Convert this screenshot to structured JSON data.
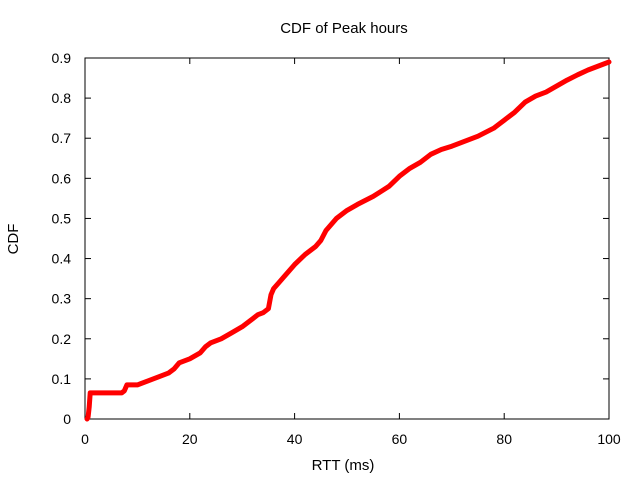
{
  "chart_data": {
    "type": "line",
    "title": "CDF of Peak hours",
    "xlabel": "RTT (ms)",
    "ylabel": "CDF",
    "xlim": [
      0,
      100
    ],
    "ylim": [
      0,
      0.9
    ],
    "xticks": [
      0,
      20,
      40,
      60,
      80,
      100
    ],
    "yticks": [
      0,
      0.1,
      0.2,
      0.3,
      0.4,
      0.5,
      0.6,
      0.7,
      0.8,
      0.9
    ],
    "xtick_labels": [
      "0",
      "20",
      "40",
      "60",
      "80",
      "100"
    ],
    "ytick_labels": [
      "0",
      "0.1",
      "0.2",
      "0.3",
      "0.4",
      "0.5",
      "0.6",
      "0.7",
      "0.8",
      "0.9"
    ],
    "grid": false,
    "legend": "none",
    "series": [
      {
        "color": "#ff0000",
        "x": [
          0.4,
          0.6,
          0.8,
          1.0,
          1.2,
          7.0,
          7.5,
          8.0,
          10.0,
          12.0,
          14.0,
          16.0,
          17.0,
          18.0,
          20.0,
          22.0,
          23.0,
          24.0,
          26.0,
          28.0,
          30.0,
          32.0,
          33.0,
          34.0,
          35.0,
          35.5,
          36.0,
          37.0,
          38.0,
          40.0,
          42.0,
          44.0,
          45.0,
          46.0,
          48.0,
          50.0,
          52.0,
          55.0,
          58.0,
          60.0,
          62.0,
          64.0,
          66.0,
          68.0,
          70.0,
          72.0,
          75.0,
          78.0,
          80.0,
          82.0,
          84.0,
          86.0,
          88.0,
          90.0,
          92.0,
          94.0,
          96.0,
          98.0,
          100.0
        ],
        "y": [
          0.0,
          0.005,
          0.03,
          0.065,
          0.065,
          0.065,
          0.07,
          0.085,
          0.085,
          0.095,
          0.105,
          0.115,
          0.125,
          0.14,
          0.15,
          0.165,
          0.18,
          0.19,
          0.2,
          0.215,
          0.23,
          0.25,
          0.26,
          0.265,
          0.275,
          0.31,
          0.325,
          0.34,
          0.355,
          0.385,
          0.41,
          0.43,
          0.445,
          0.47,
          0.5,
          0.52,
          0.535,
          0.555,
          0.58,
          0.605,
          0.625,
          0.64,
          0.66,
          0.672,
          0.68,
          0.69,
          0.705,
          0.725,
          0.745,
          0.765,
          0.79,
          0.805,
          0.815,
          0.83,
          0.845,
          0.858,
          0.87,
          0.88,
          0.89
        ]
      }
    ]
  }
}
